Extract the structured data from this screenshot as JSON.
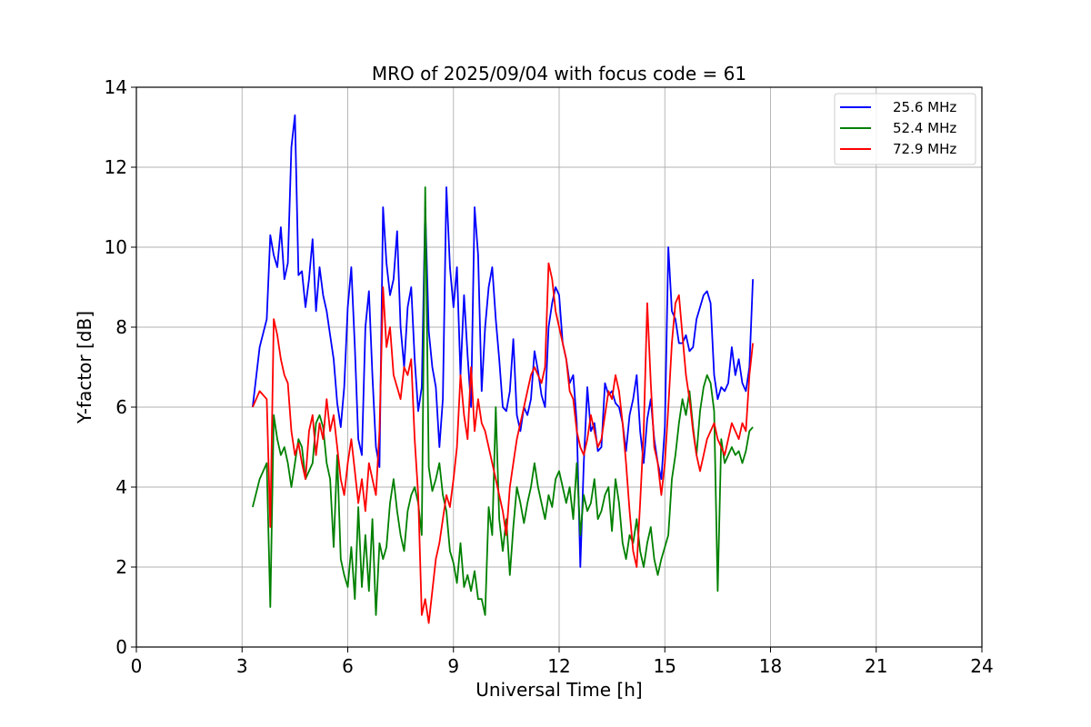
{
  "chart_data": {
    "type": "line",
    "title": "MRO of 2025/09/04 with focus code = 61",
    "xlabel": "Universal Time [h]",
    "ylabel": "Y-factor [dB]",
    "xlim": [
      0,
      24
    ],
    "ylim": [
      0,
      14
    ],
    "xticks": [
      0,
      3,
      6,
      9,
      12,
      15,
      18,
      21,
      24
    ],
    "yticks": [
      0,
      2,
      4,
      6,
      8,
      10,
      12,
      14
    ],
    "grid": true,
    "legend": "top-right",
    "series": [
      {
        "name": "25.6 MHz",
        "color": "#0000ff",
        "x": [
          3.3,
          3.5,
          3.7,
          3.8,
          3.9,
          4.0,
          4.1,
          4.2,
          4.3,
          4.4,
          4.5,
          4.6,
          4.7,
          4.8,
          4.9,
          5.0,
          5.1,
          5.2,
          5.3,
          5.4,
          5.5,
          5.6,
          5.7,
          5.8,
          5.9,
          6.0,
          6.1,
          6.2,
          6.3,
          6.4,
          6.5,
          6.6,
          6.7,
          6.8,
          6.9,
          7.0,
          7.1,
          7.2,
          7.3,
          7.4,
          7.5,
          7.6,
          7.7,
          7.8,
          7.9,
          8.0,
          8.1,
          8.2,
          8.3,
          8.4,
          8.5,
          8.6,
          8.7,
          8.8,
          8.9,
          9.0,
          9.1,
          9.2,
          9.3,
          9.4,
          9.5,
          9.6,
          9.7,
          9.8,
          9.9,
          10.0,
          10.1,
          10.2,
          10.3,
          10.4,
          10.5,
          10.6,
          10.7,
          10.8,
          10.9,
          11.0,
          11.1,
          11.2,
          11.3,
          11.4,
          11.5,
          11.6,
          11.7,
          11.8,
          11.9,
          12.0,
          12.1,
          12.2,
          12.3,
          12.4,
          12.5,
          12.6,
          12.7,
          12.8,
          12.9,
          13.0,
          13.1,
          13.2,
          13.3,
          13.4,
          13.5,
          13.6,
          13.7,
          13.8,
          13.9,
          14.0,
          14.1,
          14.2,
          14.3,
          14.4,
          14.5,
          14.6,
          14.7,
          14.8,
          14.9,
          15.0,
          15.1,
          15.2,
          15.3,
          15.4,
          15.5,
          15.6,
          15.7,
          15.8,
          15.9,
          16.0,
          16.1,
          16.2,
          16.3,
          16.4,
          16.5,
          16.6,
          16.7,
          16.8,
          16.9,
          17.0,
          17.1,
          17.2,
          17.3,
          17.4,
          17.5
        ],
        "y": [
          6.0,
          7.5,
          8.2,
          10.3,
          9.8,
          9.5,
          10.5,
          9.2,
          9.6,
          12.5,
          13.3,
          9.3,
          9.4,
          8.5,
          9.2,
          10.2,
          8.4,
          9.5,
          8.8,
          8.4,
          7.8,
          7.2,
          6.1,
          5.5,
          6.5,
          8.5,
          9.5,
          7.5,
          5.2,
          4.8,
          8.0,
          8.9,
          6.8,
          5.0,
          4.5,
          11.0,
          9.6,
          8.8,
          9.2,
          10.4,
          8.0,
          7.0,
          8.5,
          9.0,
          7.2,
          5.9,
          6.5,
          11.0,
          7.9,
          7.0,
          6.5,
          5.0,
          6.2,
          11.5,
          9.5,
          8.5,
          9.5,
          6.8,
          8.8,
          7.3,
          6.0,
          11.0,
          9.8,
          6.4,
          8.0,
          9.0,
          9.5,
          8.2,
          7.2,
          6.0,
          5.9,
          6.4,
          7.7,
          5.8,
          5.4,
          6.0,
          5.8,
          6.2,
          7.4,
          6.9,
          6.3,
          6.0,
          8.0,
          8.6,
          9.0,
          8.8,
          7.6,
          7.2,
          6.6,
          6.8,
          5.6,
          2.0,
          4.6,
          6.5,
          5.4,
          5.6,
          4.9,
          5.0,
          6.6,
          6.3,
          6.4,
          6.1,
          6.0,
          5.6,
          4.9,
          5.8,
          6.2,
          6.8,
          5.4,
          4.6,
          5.7,
          6.2,
          5.2,
          4.6,
          4.2,
          5.5,
          10.0,
          8.4,
          8.2,
          7.6,
          7.6,
          7.8,
          7.4,
          7.5,
          8.2,
          8.5,
          8.8,
          8.9,
          8.6,
          6.8,
          6.2,
          6.5,
          6.4,
          6.6,
          7.5,
          6.8,
          7.2,
          6.6,
          6.4,
          7.0,
          9.2
        ]
      },
      {
        "name": "52.4 MHz",
        "color": "#008000",
        "x": [
          3.3,
          3.5,
          3.7,
          3.8,
          3.9,
          4.0,
          4.1,
          4.2,
          4.3,
          4.4,
          4.5,
          4.6,
          4.7,
          4.8,
          4.9,
          5.0,
          5.1,
          5.2,
          5.3,
          5.4,
          5.5,
          5.6,
          5.7,
          5.8,
          5.9,
          6.0,
          6.1,
          6.2,
          6.3,
          6.4,
          6.5,
          6.6,
          6.7,
          6.8,
          6.9,
          7.0,
          7.1,
          7.2,
          7.3,
          7.4,
          7.5,
          7.6,
          7.7,
          7.8,
          7.9,
          8.0,
          8.1,
          8.2,
          8.3,
          8.4,
          8.5,
          8.6,
          8.7,
          8.8,
          8.9,
          9.0,
          9.1,
          9.2,
          9.3,
          9.4,
          9.5,
          9.6,
          9.7,
          9.8,
          9.9,
          10.0,
          10.1,
          10.2,
          10.3,
          10.4,
          10.5,
          10.6,
          10.7,
          10.8,
          10.9,
          11.0,
          11.1,
          11.2,
          11.3,
          11.4,
          11.5,
          11.6,
          11.7,
          11.8,
          11.9,
          12.0,
          12.1,
          12.2,
          12.3,
          12.4,
          12.5,
          12.6,
          12.7,
          12.8,
          12.9,
          13.0,
          13.1,
          13.2,
          13.3,
          13.4,
          13.5,
          13.6,
          13.7,
          13.8,
          13.9,
          14.0,
          14.1,
          14.2,
          14.3,
          14.4,
          14.5,
          14.6,
          14.7,
          14.8,
          14.9,
          15.0,
          15.1,
          15.2,
          15.3,
          15.4,
          15.5,
          15.6,
          15.7,
          15.8,
          15.9,
          16.0,
          16.1,
          16.2,
          16.3,
          16.4,
          16.5,
          16.6,
          16.7,
          16.8,
          16.9,
          17.0,
          17.1,
          17.2,
          17.3,
          17.4,
          17.5
        ],
        "y": [
          3.5,
          4.2,
          4.6,
          1.0,
          5.8,
          5.2,
          4.8,
          5.0,
          4.6,
          4.0,
          4.6,
          5.2,
          5.0,
          4.2,
          4.4,
          4.6,
          5.6,
          5.8,
          5.5,
          4.6,
          4.2,
          2.5,
          4.8,
          2.2,
          1.8,
          1.5,
          2.5,
          1.2,
          3.5,
          1.5,
          2.8,
          1.4,
          3.2,
          0.8,
          2.6,
          2.2,
          2.5,
          3.6,
          4.2,
          3.4,
          2.8,
          2.4,
          3.4,
          3.8,
          4.0,
          3.6,
          2.8,
          11.5,
          4.5,
          3.9,
          4.2,
          4.6,
          3.8,
          3.4,
          2.4,
          2.1,
          1.6,
          2.6,
          1.5,
          1.8,
          1.4,
          1.9,
          1.2,
          1.2,
          0.8,
          3.5,
          2.8,
          6.0,
          3.2,
          2.4,
          3.2,
          1.8,
          3.0,
          4.0,
          3.6,
          3.1,
          3.6,
          4.0,
          4.6,
          4.0,
          3.6,
          3.2,
          3.8,
          3.5,
          4.2,
          4.4,
          4.0,
          3.6,
          4.0,
          3.2,
          4.6,
          2.8,
          3.8,
          3.4,
          3.6,
          4.2,
          3.2,
          3.4,
          3.8,
          4.0,
          2.9,
          4.2,
          3.6,
          2.6,
          2.2,
          2.8,
          2.6,
          3.2,
          2.4,
          2.0,
          2.6,
          3.0,
          2.2,
          1.8,
          2.2,
          2.5,
          2.8,
          4.2,
          4.8,
          5.6,
          6.2,
          5.8,
          6.4,
          5.5,
          4.8,
          5.9,
          6.5,
          6.8,
          6.6,
          5.9,
          1.4,
          5.2,
          4.6,
          4.8,
          5.0,
          4.8,
          4.9,
          4.6,
          4.9,
          5.4,
          5.5
        ]
      },
      {
        "name": "72.9 MHz",
        "color": "#ff0000",
        "x": [
          3.3,
          3.5,
          3.7,
          3.8,
          3.9,
          4.0,
          4.1,
          4.2,
          4.3,
          4.4,
          4.5,
          4.6,
          4.7,
          4.8,
          4.9,
          5.0,
          5.1,
          5.2,
          5.3,
          5.4,
          5.5,
          5.6,
          5.7,
          5.8,
          5.9,
          6.0,
          6.1,
          6.2,
          6.3,
          6.4,
          6.5,
          6.6,
          6.7,
          6.8,
          6.9,
          7.0,
          7.1,
          7.2,
          7.3,
          7.4,
          7.5,
          7.6,
          7.7,
          7.8,
          7.9,
          8.0,
          8.1,
          8.2,
          8.3,
          8.4,
          8.5,
          8.6,
          8.7,
          8.8,
          8.9,
          9.0,
          9.1,
          9.2,
          9.3,
          9.4,
          9.5,
          9.6,
          9.7,
          9.8,
          9.9,
          10.0,
          10.1,
          10.2,
          10.3,
          10.4,
          10.5,
          10.6,
          10.7,
          10.8,
          10.9,
          11.0,
          11.1,
          11.2,
          11.3,
          11.4,
          11.5,
          11.6,
          11.7,
          11.8,
          11.9,
          12.0,
          12.1,
          12.2,
          12.3,
          12.4,
          12.5,
          12.6,
          12.7,
          12.8,
          12.9,
          13.0,
          13.1,
          13.2,
          13.3,
          13.4,
          13.5,
          13.6,
          13.7,
          13.8,
          13.9,
          14.0,
          14.1,
          14.2,
          14.3,
          14.4,
          14.5,
          14.6,
          14.7,
          14.8,
          14.9,
          15.0,
          15.1,
          15.2,
          15.3,
          15.4,
          15.5,
          15.6,
          15.7,
          15.8,
          15.9,
          16.0,
          16.1,
          16.2,
          16.3,
          16.4,
          16.5,
          16.6,
          16.7,
          16.8,
          16.9,
          17.0,
          17.1,
          17.2,
          17.3,
          17.4,
          17.5
        ],
        "y": [
          6.0,
          6.4,
          6.2,
          3.0,
          8.2,
          7.8,
          7.2,
          6.8,
          6.6,
          5.4,
          4.8,
          5.1,
          4.6,
          4.2,
          5.4,
          5.8,
          4.8,
          5.6,
          5.2,
          6.2,
          5.4,
          5.8,
          5.0,
          4.2,
          3.8,
          4.6,
          5.2,
          4.4,
          3.6,
          4.2,
          3.4,
          4.6,
          4.2,
          3.8,
          5.4,
          9.0,
          7.5,
          8.0,
          6.8,
          6.5,
          6.2,
          7.0,
          6.8,
          7.2,
          5.2,
          3.8,
          0.8,
          1.2,
          0.6,
          1.4,
          2.2,
          2.6,
          3.2,
          3.8,
          3.5,
          4.2,
          5.0,
          6.8,
          5.8,
          5.2,
          7.0,
          5.4,
          6.2,
          5.6,
          5.4,
          5.0,
          4.6,
          4.2,
          3.8,
          3.4,
          2.8,
          4.0,
          4.6,
          5.2,
          5.6,
          6.0,
          6.4,
          6.8,
          7.0,
          6.8,
          6.6,
          7.0,
          9.6,
          9.2,
          8.4,
          8.0,
          7.6,
          7.2,
          6.4,
          6.2,
          5.4,
          5.0,
          4.8,
          5.2,
          5.8,
          5.4,
          5.0,
          5.2,
          5.8,
          6.4,
          6.2,
          6.8,
          6.4,
          5.6,
          4.6,
          3.4,
          2.4,
          2.0,
          3.6,
          5.4,
          8.6,
          6.6,
          5.0,
          4.6,
          3.8,
          4.6,
          6.0,
          7.6,
          8.6,
          8.8,
          7.8,
          6.8,
          6.2,
          5.4,
          4.8,
          4.4,
          4.8,
          5.2,
          5.4,
          5.6,
          5.2,
          5.0,
          4.8,
          5.2,
          5.6,
          5.4,
          5.2,
          5.6,
          5.4,
          6.8,
          7.6
        ]
      }
    ]
  }
}
